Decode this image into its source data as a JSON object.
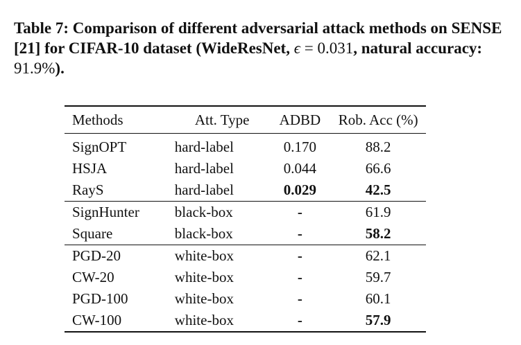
{
  "caption": {
    "part1": "Table 7: Comparison of different adversarial attack methods on SENSE [21] for CIFAR-10 dataset (WideResNet, ",
    "epsilon": "ϵ",
    "eq": " = 0.031",
    "comma": ",",
    "part2": " natural accuracy: ",
    "accuracy": "91.9%",
    "part3": ")."
  },
  "table": {
    "headers": [
      "Methods",
      "Att. Type",
      "ADBD",
      "Rob. Acc (%)"
    ],
    "rows": [
      {
        "method": "SignOPT",
        "type": "hard-label",
        "adbd": "0.170",
        "acc": "88.2",
        "adbd_bold": false,
        "acc_bold": false
      },
      {
        "method": "HSJA",
        "type": "hard-label",
        "adbd": "0.044",
        "acc": "66.6",
        "adbd_bold": false,
        "acc_bold": false
      },
      {
        "method": "RayS",
        "type": "hard-label",
        "adbd": "0.029",
        "acc": "42.5",
        "adbd_bold": true,
        "acc_bold": true
      },
      {
        "method": "SignHunter",
        "type": "black-box",
        "adbd": "-",
        "acc": "61.9",
        "adbd_bold": false,
        "acc_bold": false
      },
      {
        "method": "Square",
        "type": "black-box",
        "adbd": "-",
        "acc": "58.2",
        "adbd_bold": false,
        "acc_bold": true
      },
      {
        "method": "PGD-20",
        "type": "white-box",
        "adbd": "-",
        "acc": "62.1",
        "adbd_bold": false,
        "acc_bold": false
      },
      {
        "method": "CW-20",
        "type": "white-box",
        "adbd": "-",
        "acc": "59.7",
        "adbd_bold": false,
        "acc_bold": false
      },
      {
        "method": "PGD-100",
        "type": "white-box",
        "adbd": "-",
        "acc": "60.1",
        "adbd_bold": false,
        "acc_bold": false
      },
      {
        "method": "CW-100",
        "type": "white-box",
        "adbd": "-",
        "acc": "57.9",
        "adbd_bold": false,
        "acc_bold": true
      }
    ]
  }
}
